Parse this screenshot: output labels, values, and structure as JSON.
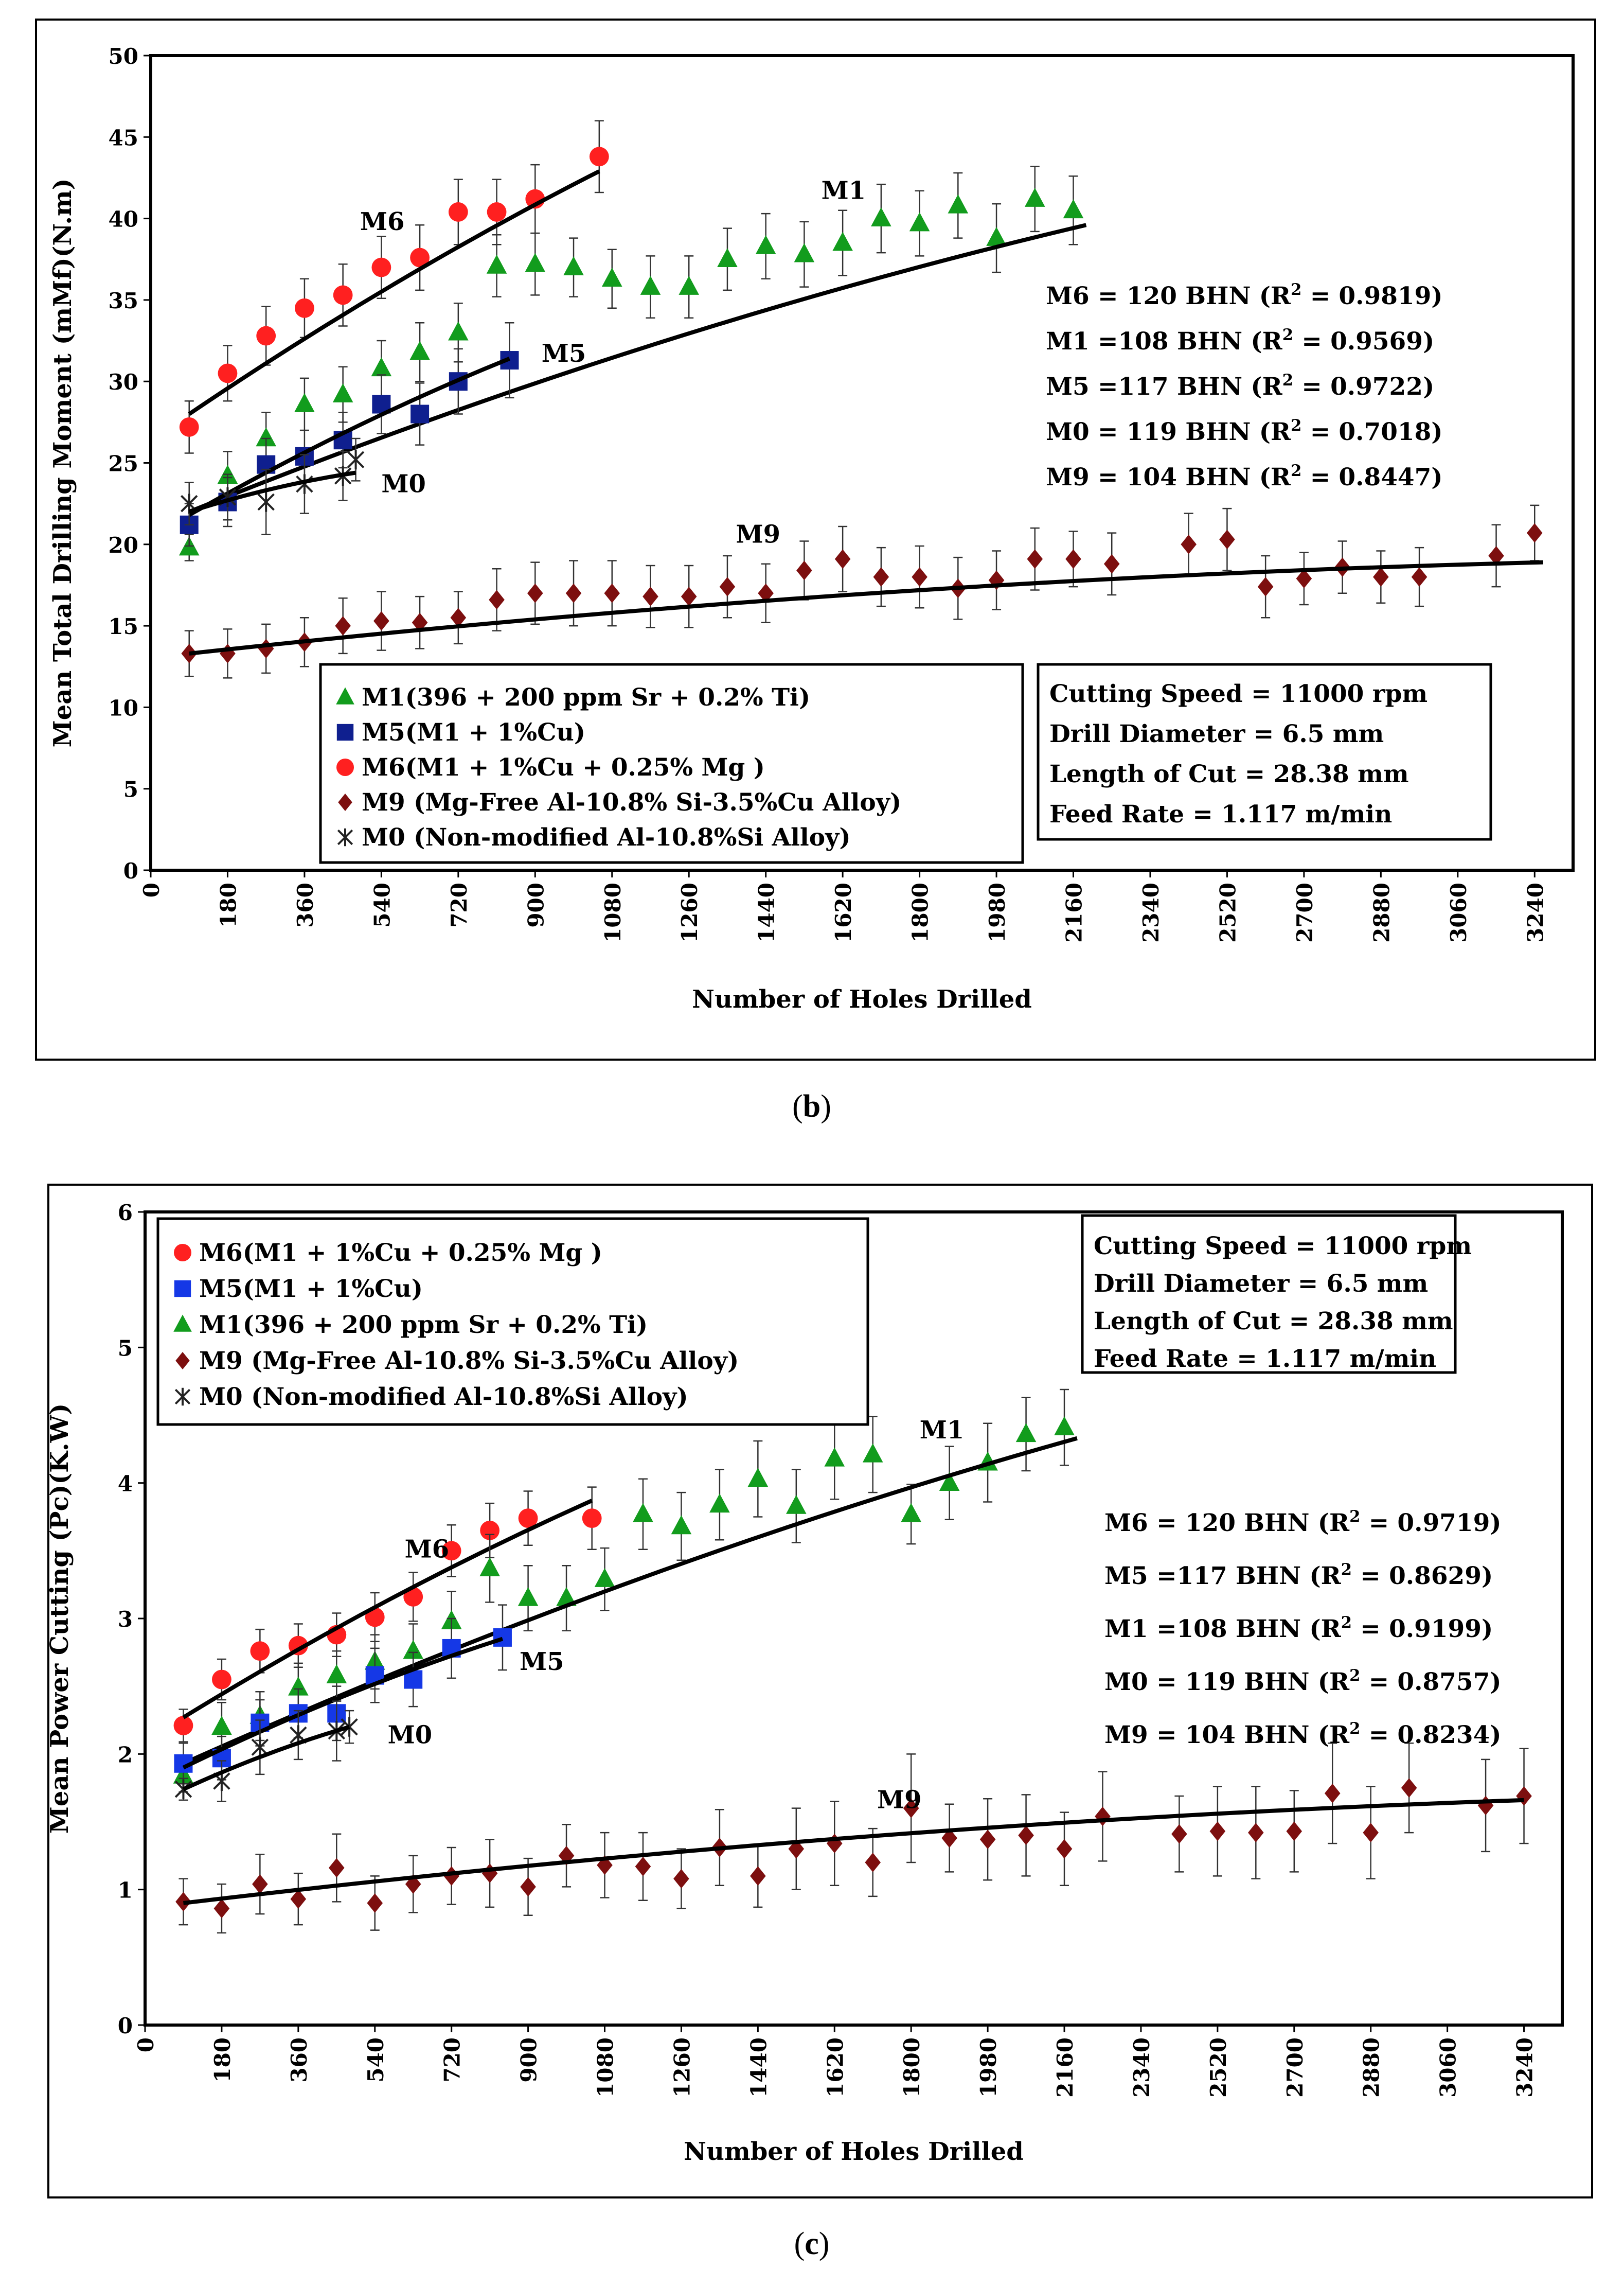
{
  "panel_labels": {
    "b_open": "(",
    "b_letter": "b",
    "b_close": ")",
    "c_open": "(",
    "c_letter": "c",
    "c_close": ")"
  },
  "chart_data": [
    {
      "id": "b",
      "type": "scatter",
      "xlabel": "Number of Holes Drilled",
      "ylabel": "Mean Total Drilling Moment (mMf)(N.m)",
      "xlim": [
        0,
        3330
      ],
      "ylim": [
        0,
        50
      ],
      "xticks": [
        0,
        180,
        360,
        540,
        720,
        900,
        1080,
        1260,
        1440,
        1620,
        1800,
        1980,
        2160,
        2340,
        2520,
        2700,
        2880,
        3060,
        3240
      ],
      "yticks": [
        0,
        5,
        10,
        15,
        20,
        25,
        30,
        35,
        40,
        45,
        50
      ],
      "legend": [
        "M1(396 + 200 ppm Sr + 0.2% Ti)",
        "M5(M1 + 1%Cu)",
        "M6(M1 + 1%Cu + 0.25% Mg )",
        "M9 (Mg-Free Al-10.8% Si-3.5%Cu Alloy)",
        "M0 (Non-modified Al-10.8%Si Alloy)"
      ],
      "legend_order": [
        "M1",
        "M5",
        "M6",
        "M9",
        "M0"
      ],
      "conditions": [
        "Cutting Speed = 11000 rpm",
        "Drill Diameter = 6.5 mm",
        "Length of Cut = 28.38 mm",
        "Feed Rate = 1.117 m/min"
      ],
      "r2": [
        {
          "pre": "M6 = 120 BHN (R",
          "sup": "2",
          "post": " =  0.9819)"
        },
        {
          "pre": "M1 =108 BHN (R",
          "sup": "2",
          "post": " = 0.9569)"
        },
        {
          "pre": "M5 =117 BHN (R",
          "sup": "2",
          "post": " = 0.9722)"
        },
        {
          "pre": "M0 = 119 BHN (R",
          "sup": "2",
          "post": " = 0.7018)"
        },
        {
          "pre": "M9 = 104 BHN (R",
          "sup": "2",
          "post": " = 0.8447)"
        }
      ],
      "curve_labels": [
        {
          "text": "M6",
          "x": 490,
          "y": 39.3
        },
        {
          "text": "M1",
          "x": 1570,
          "y": 41.2
        },
        {
          "text": "M5",
          "x": 915,
          "y": 31.2
        },
        {
          "text": "M0",
          "x": 540,
          "y": 23.2
        },
        {
          "text": "M9",
          "x": 1370,
          "y": 20.1
        }
      ],
      "series": [
        {
          "name": "M6",
          "marker": "circle",
          "color": "#ff2020",
          "x": [
            90,
            180,
            270,
            360,
            450,
            540,
            630,
            720,
            810,
            900,
            1050
          ],
          "y": [
            27.2,
            30.5,
            32.8,
            34.5,
            35.3,
            37.0,
            37.6,
            40.4,
            40.4,
            41.2,
            43.8
          ],
          "err": [
            1.6,
            1.7,
            1.8,
            1.8,
            1.9,
            1.9,
            2.0,
            2.0,
            2.0,
            2.1,
            2.2
          ],
          "fit": [
            [
              90,
              28.0
            ],
            [
              1050,
              42.9
            ]
          ]
        },
        {
          "name": "M1",
          "marker": "triangle",
          "color": "#129c1d",
          "x": [
            90,
            180,
            270,
            360,
            450,
            540,
            630,
            720,
            810,
            900,
            990,
            1080,
            1170,
            1260,
            1350,
            1440,
            1530,
            1620,
            1710,
            1800,
            1890,
            1980,
            2070,
            2160
          ],
          "y": [
            19.8,
            24.2,
            26.5,
            28.6,
            29.2,
            30.8,
            31.8,
            33.0,
            37.1,
            37.2,
            37.0,
            36.3,
            35.8,
            35.8,
            37.5,
            38.3,
            37.8,
            38.5,
            40.0,
            39.7,
            40.8,
            38.8,
            41.2,
            40.5
          ],
          "err": [
            0.8,
            1.5,
            1.6,
            1.6,
            1.7,
            1.7,
            1.8,
            1.8,
            1.9,
            1.9,
            1.8,
            1.8,
            1.9,
            1.9,
            1.9,
            2.0,
            2.0,
            2.0,
            2.1,
            2.0,
            2.0,
            2.1,
            2.0,
            2.1
          ],
          "fit": [
            [
              90,
              22.0
            ],
            [
              2190,
              39.6
            ]
          ]
        },
        {
          "name": "M5",
          "marker": "square",
          "color": "#0f1f8f",
          "x": [
            90,
            180,
            270,
            360,
            450,
            540,
            630,
            720,
            840
          ],
          "y": [
            21.2,
            22.6,
            24.9,
            25.4,
            26.4,
            28.6,
            28.0,
            30.0,
            31.3
          ],
          "err": [
            1.3,
            1.5,
            1.6,
            1.6,
            1.7,
            1.8,
            1.9,
            2.0,
            2.3
          ],
          "fit": [
            [
              90,
              21.8
            ],
            [
              840,
              31.4
            ]
          ]
        },
        {
          "name": "M0",
          "marker": "star",
          "color": "#222222",
          "x": [
            90,
            180,
            270,
            360,
            450,
            480
          ],
          "y": [
            22.5,
            22.9,
            22.6,
            23.7,
            24.2,
            25.2
          ],
          "err": [
            1.3,
            1.4,
            2.0,
            1.8,
            1.5,
            1.3
          ],
          "fit": [
            [
              90,
              22.0
            ],
            [
              480,
              24.4
            ]
          ]
        },
        {
          "name": "M9",
          "marker": "diamond",
          "color": "#7d0f0f",
          "x": [
            90,
            180,
            270,
            360,
            450,
            540,
            630,
            720,
            810,
            900,
            990,
            1080,
            1170,
            1260,
            1350,
            1440,
            1530,
            1620,
            1710,
            1800,
            1890,
            1980,
            2070,
            2160,
            2250,
            2430,
            2520,
            2610,
            2700,
            2790,
            2880,
            2970,
            3150,
            3240
          ],
          "y": [
            13.3,
            13.3,
            13.6,
            14.0,
            15.0,
            15.3,
            15.2,
            15.5,
            16.6,
            17.0,
            17.0,
            17.0,
            16.8,
            16.8,
            17.4,
            17.0,
            18.4,
            19.1,
            18.0,
            18.0,
            17.3,
            17.8,
            19.1,
            19.1,
            18.8,
            20.0,
            20.3,
            17.4,
            17.9,
            18.6,
            18.0,
            18.0,
            19.3,
            20.7
          ],
          "err": [
            1.4,
            1.5,
            1.5,
            1.5,
            1.7,
            1.8,
            1.6,
            1.6,
            1.9,
            1.9,
            2.0,
            2.0,
            1.9,
            1.9,
            1.9,
            1.8,
            1.8,
            2.0,
            1.8,
            1.9,
            1.9,
            1.8,
            1.9,
            1.7,
            1.9,
            1.9,
            1.9,
            1.9,
            1.6,
            1.6,
            1.6,
            1.8,
            1.9,
            1.7
          ],
          "fit": [
            [
              90,
              13.3
            ],
            [
              3260,
              18.9
            ]
          ]
        }
      ]
    },
    {
      "id": "c",
      "type": "scatter",
      "xlabel": "Number of Holes Drilled",
      "ylabel": "Mean Power Cutting (Pc)(K.W)",
      "xlim": [
        0,
        3330
      ],
      "ylim": [
        0,
        6
      ],
      "xticks": [
        0,
        180,
        360,
        540,
        720,
        900,
        1080,
        1260,
        1440,
        1620,
        1800,
        1980,
        2160,
        2340,
        2520,
        2700,
        2880,
        3060,
        3240
      ],
      "yticks": [
        0,
        1,
        2,
        3,
        4,
        5,
        6
      ],
      "legend": [
        "M6(M1 + 1%Cu + 0.25% Mg )",
        "M5(M1 + 1%Cu)",
        "M1(396 + 200 ppm Sr + 0.2% Ti)",
        "M9 (Mg-Free Al-10.8% Si-3.5%Cu Alloy)",
        "M0 (Non-modified Al-10.8%Si Alloy)"
      ],
      "legend_order": [
        "M6",
        "M5",
        "M1",
        "M9",
        "M0"
      ],
      "conditions": [
        "Cutting Speed = 11000 rpm",
        "Drill Diameter = 6.5 mm",
        "Length of Cut = 28.38 mm",
        "Feed Rate = 1.117 m/min"
      ],
      "r2": [
        {
          "pre": "M6 = 120 BHN (R",
          "sup": "2",
          "post": " =  0.9719)"
        },
        {
          "pre": "M5 =117 BHN (R",
          "sup": "2",
          "post": " = 0.8629)"
        },
        {
          "pre": "M1 =108 BHN (R",
          "sup": "2",
          "post": " = 0.9199)"
        },
        {
          "pre": "M0 = 119 BHN (R",
          "sup": "2",
          "post": " = 0.8757)"
        },
        {
          "pre": "M9 = 104 BHN (R",
          "sup": "2",
          "post": " = 0.8234)"
        }
      ],
      "curve_labels": [
        {
          "text": "M6",
          "x": 610,
          "y": 3.45
        },
        {
          "text": "M1",
          "x": 1820,
          "y": 4.33
        },
        {
          "text": "M5",
          "x": 880,
          "y": 2.62
        },
        {
          "text": "M0",
          "x": 570,
          "y": 2.08
        },
        {
          "text": "M9",
          "x": 1720,
          "y": 1.6
        }
      ],
      "series": [
        {
          "name": "M6",
          "marker": "circle",
          "color": "#ff2020",
          "x": [
            90,
            180,
            270,
            360,
            450,
            540,
            630,
            720,
            810,
            900,
            1050
          ],
          "y": [
            2.21,
            2.55,
            2.76,
            2.8,
            2.88,
            3.01,
            3.16,
            3.5,
            3.65,
            3.74,
            3.74
          ],
          "err": [
            0.12,
            0.15,
            0.16,
            0.16,
            0.16,
            0.18,
            0.18,
            0.19,
            0.2,
            0.2,
            0.23
          ],
          "fit": [
            [
              90,
              2.27
            ],
            [
              1050,
              3.87
            ]
          ]
        },
        {
          "name": "M1",
          "marker": "triangle",
          "color": "#129c1d",
          "x": [
            90,
            180,
            270,
            360,
            450,
            540,
            630,
            720,
            810,
            900,
            990,
            1080,
            1170,
            1260,
            1350,
            1440,
            1530,
            1620,
            1710,
            1800,
            1890,
            1980,
            2070,
            2160
          ],
          "y": [
            1.84,
            2.2,
            2.28,
            2.49,
            2.58,
            2.68,
            2.76,
            2.98,
            3.37,
            3.15,
            3.15,
            3.29,
            3.77,
            3.68,
            3.84,
            4.03,
            3.83,
            4.18,
            4.21,
            3.77,
            4.0,
            4.15,
            4.36,
            4.41
          ],
          "err": [
            0.12,
            0.18,
            0.18,
            0.18,
            0.18,
            0.2,
            0.2,
            0.22,
            0.25,
            0.24,
            0.24,
            0.23,
            0.26,
            0.25,
            0.26,
            0.28,
            0.27,
            0.3,
            0.28,
            0.22,
            0.27,
            0.29,
            0.27,
            0.28
          ],
          "fit": [
            [
              90,
              1.93
            ],
            [
              2190,
              4.33
            ]
          ]
        },
        {
          "name": "M5",
          "marker": "square",
          "color": "#1538e6",
          "x": [
            90,
            180,
            270,
            360,
            450,
            540,
            630,
            720,
            840
          ],
          "y": [
            1.93,
            1.97,
            2.23,
            2.3,
            2.3,
            2.58,
            2.55,
            2.78,
            2.86
          ],
          "err": [
            0.15,
            0.16,
            0.17,
            0.18,
            0.2,
            0.2,
            0.2,
            0.22,
            0.24
          ],
          "fit": [
            [
              90,
              1.9
            ],
            [
              840,
              2.85
            ]
          ]
        },
        {
          "name": "M0",
          "marker": "star",
          "color": "#222222",
          "x": [
            90,
            180,
            270,
            360,
            450,
            480
          ],
          "y": [
            1.74,
            1.8,
            2.05,
            2.14,
            2.17,
            2.2
          ],
          "err": [
            0.08,
            0.15,
            0.2,
            0.18,
            0.22,
            0.12
          ],
          "fit": [
            [
              90,
              1.74
            ],
            [
              480,
              2.2
            ]
          ]
        },
        {
          "name": "M9",
          "marker": "diamond",
          "color": "#7d0f0f",
          "x": [
            90,
            180,
            270,
            360,
            450,
            540,
            630,
            720,
            810,
            900,
            990,
            1080,
            1170,
            1260,
            1350,
            1440,
            1530,
            1620,
            1710,
            1800,
            1890,
            1980,
            2070,
            2160,
            2250,
            2430,
            2520,
            2610,
            2700,
            2790,
            2880,
            2970,
            3150,
            3240
          ],
          "y": [
            0.91,
            0.86,
            1.04,
            0.93,
            1.16,
            0.9,
            1.04,
            1.1,
            1.12,
            1.02,
            1.25,
            1.18,
            1.17,
            1.08,
            1.31,
            1.1,
            1.3,
            1.34,
            1.2,
            1.6,
            1.38,
            1.37,
            1.4,
            1.3,
            1.54,
            1.41,
            1.43,
            1.42,
            1.43,
            1.71,
            1.42,
            1.75,
            1.62,
            1.69
          ],
          "err": [
            0.17,
            0.18,
            0.22,
            0.19,
            0.25,
            0.2,
            0.21,
            0.21,
            0.25,
            0.21,
            0.23,
            0.24,
            0.25,
            0.22,
            0.28,
            0.23,
            0.3,
            0.31,
            0.25,
            0.4,
            0.25,
            0.3,
            0.3,
            0.27,
            0.33,
            0.28,
            0.33,
            0.34,
            0.3,
            0.37,
            0.34,
            0.33,
            0.34,
            0.35
          ],
          "fit": [
            [
              90,
              0.9
            ],
            [
              3240,
              1.66
            ]
          ]
        }
      ]
    }
  ]
}
